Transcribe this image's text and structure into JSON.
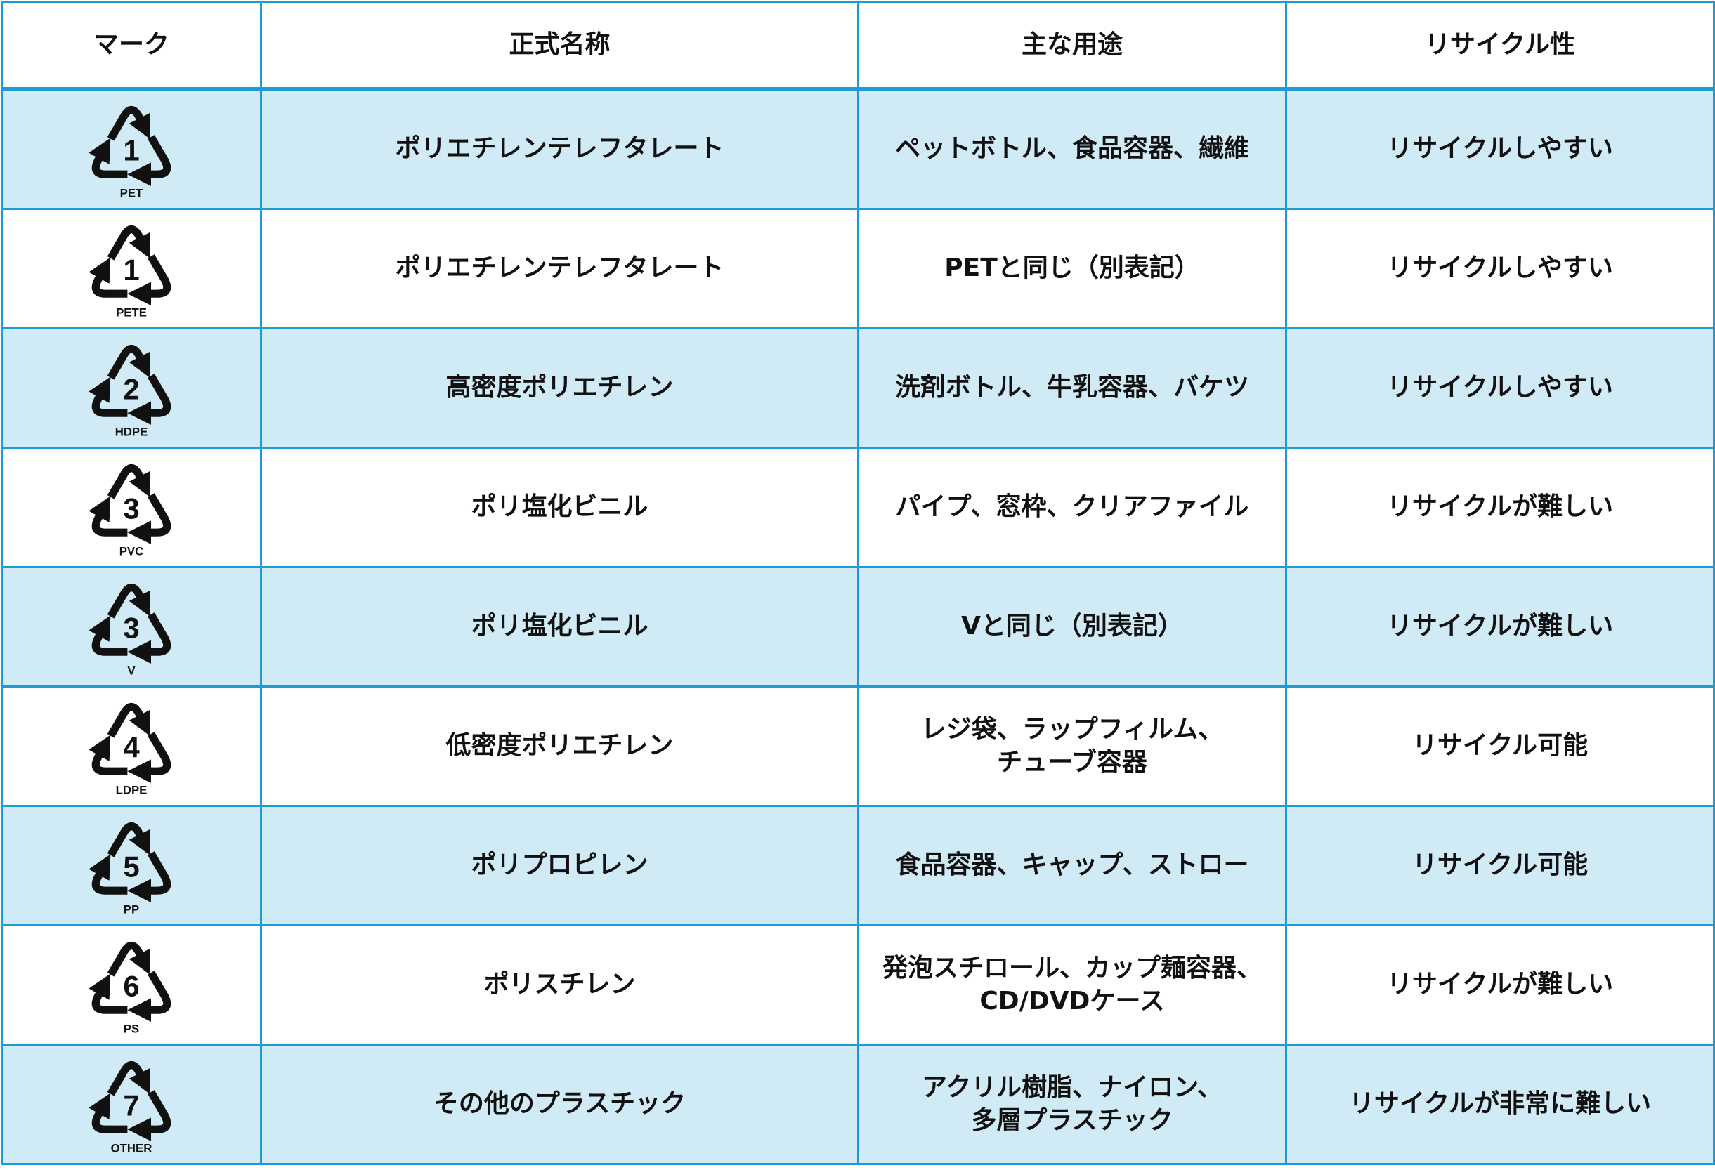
{
  "headers": [
    "マーク",
    "正式名称",
    "主な用途",
    "リサイクル性"
  ],
  "rows": [
    {
      "number": "1",
      "code": "PET",
      "name": "ポリエチレンテレフタレート",
      "uses": "ペットボトル、食品容器、繊維",
      "recyclability": "リサイクルしやすい"
    },
    {
      "number": "1",
      "code": "PETE",
      "name": "ポリエチレンテレフタレート",
      "uses": "PETと同じ（別表記）",
      "recyclability": "リサイクルしやすい"
    },
    {
      "number": "2",
      "code": "HDPE",
      "name": "高密度ポリエチレン",
      "uses": "洗剤ボトル、牛乳容器、バケツ",
      "recyclability": "リサイクルしやすい"
    },
    {
      "number": "3",
      "code": "PVC",
      "name": "ポリ塩化ビニル",
      "uses": "パイプ、窓枠、クリアファイル",
      "recyclability": "リサイクルが難しい"
    },
    {
      "number": "3",
      "code": "V",
      "name": "ポリ塩化ビニル",
      "uses": "Vと同じ（別表記）",
      "recyclability": "リサイクルが難しい"
    },
    {
      "number": "4",
      "code": "LDPE",
      "name": "低密度ポリエチレン",
      "uses": "レジ袋、ラップフィルム、\nチューブ容器",
      "recyclability": "リサイクル可能"
    },
    {
      "number": "5",
      "code": "PP",
      "name": "ポリプロピレン",
      "uses": "食品容器、キャップ、ストロー",
      "recyclability": "リサイクル可能"
    },
    {
      "number": "6",
      "code": "PS",
      "name": "ポリスチレン",
      "uses": "発泡スチロール、カップ麺容器、\nCD/DVDケース",
      "recyclability": "リサイクルが難しい"
    },
    {
      "number": "7",
      "code": "OTHER",
      "name": "その他のプラスチック",
      "uses": "アクリル樹脂、ナイロン、\n多層プラスチック",
      "recyclability": "リサイクルが非常に難しい"
    }
  ],
  "colors": {
    "border": "#1e9bd7",
    "alt_row": "#d0ebf6",
    "row": "#ffffff"
  },
  "icon": "recycling-symbol-icon"
}
